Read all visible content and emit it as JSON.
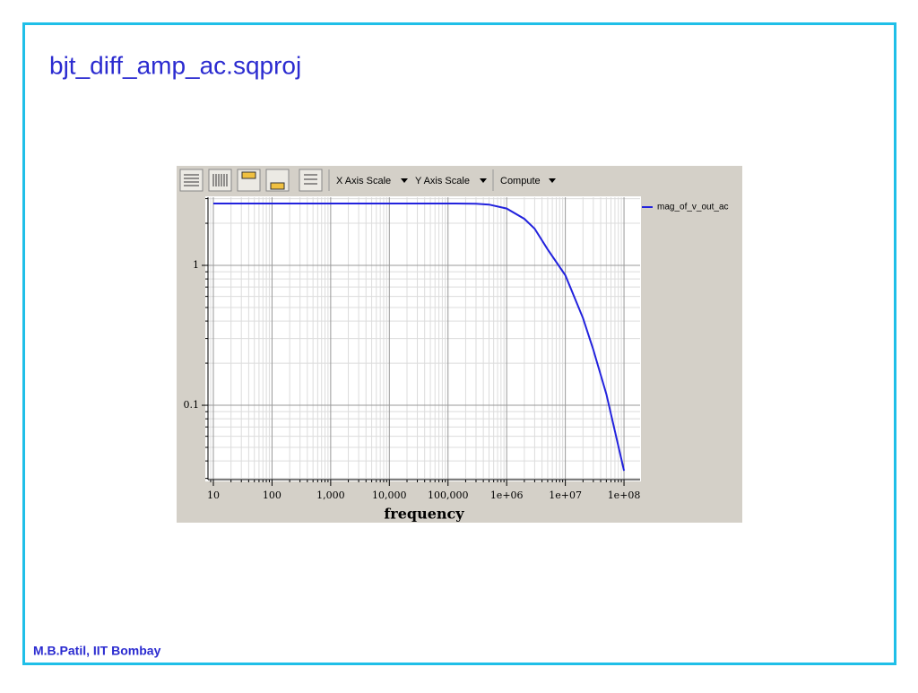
{
  "slide": {
    "title": "bjt_diff_amp_ac.sqproj",
    "footer": "M.B.Patil, IIT Bombay"
  },
  "toolbar": [
    "X Axis Scale",
    "Y Axis Scale",
    "Compute"
  ],
  "chart_data": {
    "type": "line",
    "xlabel": "frequency",
    "x": [
      10,
      100,
      1000,
      10000,
      100000,
      300000,
      500000,
      1000000,
      2000000,
      3000000,
      5000000,
      10000000,
      20000000,
      30000000,
      50000000,
      100000000
    ],
    "series": [
      {
        "name": "mag_of_v_out_ac",
        "color": "#2222dd",
        "values": [
          2.77,
          2.77,
          2.77,
          2.77,
          2.77,
          2.76,
          2.72,
          2.55,
          2.15,
          1.83,
          1.3,
          0.85,
          0.42,
          0.25,
          0.12,
          0.034
        ]
      }
    ],
    "xlog": true,
    "ylog": true,
    "xlim": [
      8.1,
      188000000
    ],
    "ylim": [
      0.0294,
      3.07
    ],
    "xticks": [
      10,
      100,
      {
        "value": 1000,
        "label": "1,000"
      },
      {
        "value": 10000,
        "label": "10,000"
      },
      {
        "value": 100000,
        "label": "100,000"
      },
      {
        "value": 1000000,
        "label": "1e+06"
      },
      {
        "value": 10000000,
        "label": "1e+07"
      },
      {
        "value": 100000000,
        "label": "1e+08"
      }
    ],
    "yticks": [
      1,
      0.1
    ],
    "grid": true,
    "legend": "right"
  }
}
